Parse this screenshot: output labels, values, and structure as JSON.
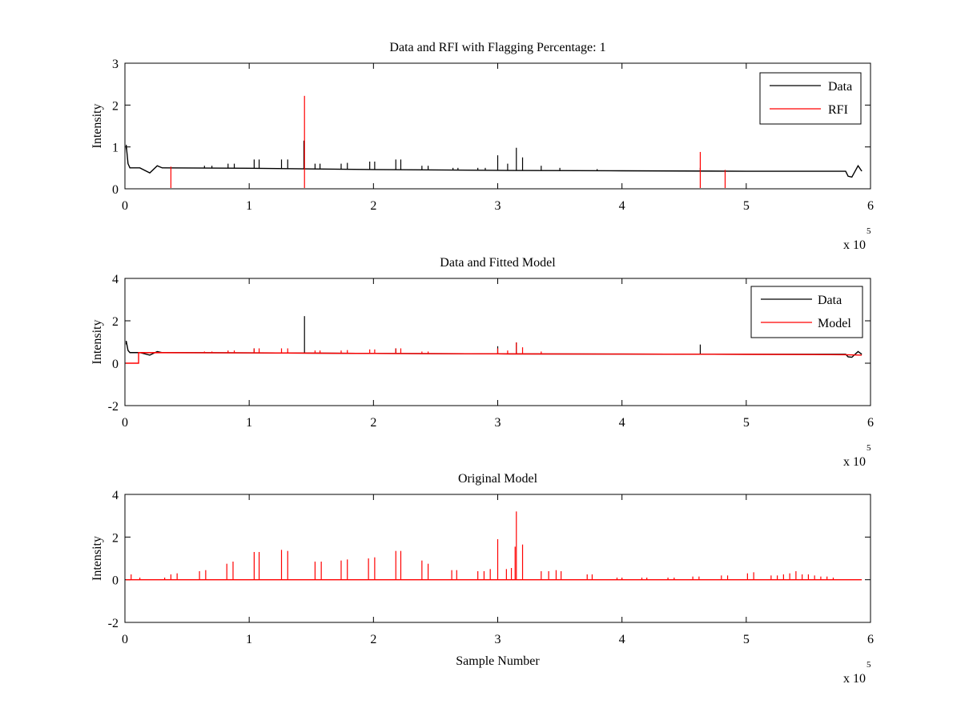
{
  "chart_data": [
    {
      "type": "line",
      "title": "Data and RFI with Flagging Percentage: 1",
      "xlabel": "",
      "ylabel": "Intensity",
      "xlim": [
        0,
        6
      ],
      "ylim": [
        0,
        3
      ],
      "xticks": [
        "0",
        "1",
        "2",
        "3",
        "4",
        "5",
        "6"
      ],
      "yticks": [
        "0",
        "1",
        "2",
        "3"
      ],
      "x_multiplier": {
        "base": "x 10",
        "exponent": "5"
      },
      "legend": {
        "position": "top-right",
        "entries": [
          {
            "label": "Data",
            "color": "#000000"
          },
          {
            "label": "RFI",
            "color": "#ff0000"
          }
        ]
      },
      "series": [
        {
          "name": "Data",
          "color": "#000000",
          "baseline": [
            [
              0,
              0.9
            ],
            [
              0.01,
              1.05
            ],
            [
              0.025,
              0.6
            ],
            [
              0.04,
              0.5
            ],
            [
              0.12,
              0.5
            ],
            [
              0.2,
              0.38
            ],
            [
              0.26,
              0.55
            ],
            [
              0.3,
              0.5
            ],
            [
              1.0,
              0.49
            ],
            [
              2.0,
              0.46
            ],
            [
              3.0,
              0.44
            ],
            [
              4.0,
              0.43
            ],
            [
              5.0,
              0.42
            ],
            [
              5.8,
              0.42
            ],
            [
              5.82,
              0.3
            ],
            [
              5.85,
              0.28
            ],
            [
              5.9,
              0.55
            ],
            [
              5.93,
              0.42
            ]
          ],
          "spikes": [
            [
              0.64,
              0.55
            ],
            [
              0.7,
              0.55
            ],
            [
              0.83,
              0.6
            ],
            [
              0.88,
              0.6
            ],
            [
              1.04,
              0.7
            ],
            [
              1.08,
              0.7
            ],
            [
              1.26,
              0.7
            ],
            [
              1.31,
              0.7
            ],
            [
              1.44,
              1.15
            ],
            [
              1.53,
              0.6
            ],
            [
              1.57,
              0.6
            ],
            [
              1.74,
              0.6
            ],
            [
              1.79,
              0.62
            ],
            [
              1.97,
              0.65
            ],
            [
              2.01,
              0.65
            ],
            [
              2.18,
              0.7
            ],
            [
              2.22,
              0.7
            ],
            [
              2.39,
              0.55
            ],
            [
              2.44,
              0.55
            ],
            [
              2.64,
              0.5
            ],
            [
              2.68,
              0.5
            ],
            [
              2.84,
              0.5
            ],
            [
              2.9,
              0.5
            ],
            [
              3.0,
              0.8
            ],
            [
              3.08,
              0.6
            ],
            [
              3.15,
              0.98
            ],
            [
              3.2,
              0.75
            ],
            [
              3.35,
              0.55
            ],
            [
              3.5,
              0.5
            ],
            [
              3.8,
              0.47
            ],
            [
              4.63,
              0.5
            ],
            [
              4.83,
              0.45
            ]
          ]
        },
        {
          "name": "RFI",
          "color": "#ff0000",
          "spikes": [
            [
              1.445,
              2.22
            ],
            [
              4.63,
              0.88
            ],
            [
              4.83,
              0.45
            ],
            [
              0.37,
              0.53
            ]
          ]
        }
      ]
    },
    {
      "type": "line",
      "title": "Data and Fitted Model",
      "xlabel": "",
      "ylabel": "Intensity",
      "xlim": [
        0,
        6
      ],
      "ylim": [
        -2,
        4
      ],
      "xticks": [
        "0",
        "1",
        "2",
        "3",
        "4",
        "5",
        "6"
      ],
      "yticks": [
        "-2",
        "0",
        "2",
        "4"
      ],
      "x_multiplier": {
        "base": "x 10",
        "exponent": "5"
      },
      "legend": {
        "position": "top-right",
        "entries": [
          {
            "label": "Data",
            "color": "#000000"
          },
          {
            "label": "Model",
            "color": "#ff0000"
          }
        ]
      },
      "series": [
        {
          "name": "Data",
          "color": "#000000",
          "baseline": [
            [
              0,
              0.8
            ],
            [
              0.01,
              1.05
            ],
            [
              0.025,
              0.6
            ],
            [
              0.04,
              0.5
            ],
            [
              0.12,
              0.5
            ],
            [
              0.2,
              0.38
            ],
            [
              0.26,
              0.55
            ],
            [
              0.3,
              0.5
            ],
            [
              1.0,
              0.49
            ],
            [
              2.0,
              0.46
            ],
            [
              3.0,
              0.44
            ],
            [
              4.0,
              0.43
            ],
            [
              5.0,
              0.42
            ],
            [
              5.8,
              0.42
            ],
            [
              5.82,
              0.3
            ],
            [
              5.85,
              0.28
            ],
            [
              5.9,
              0.55
            ],
            [
              5.93,
              0.42
            ]
          ],
          "spikes": [
            [
              1.445,
              2.22
            ],
            [
              4.63,
              0.88
            ],
            [
              3.0,
              0.8
            ],
            [
              3.15,
              0.98
            ],
            [
              2.18,
              0.7
            ],
            [
              1.04,
              0.7
            ]
          ]
        },
        {
          "name": "Model",
          "color": "#ff0000",
          "baseline": [
            [
              0,
              0.0
            ],
            [
              0.11,
              0.0
            ],
            [
              0.11,
              0.5
            ],
            [
              1.0,
              0.49
            ],
            [
              2.0,
              0.46
            ],
            [
              3.0,
              0.44
            ],
            [
              4.0,
              0.43
            ],
            [
              5.0,
              0.42
            ],
            [
              5.8,
              0.4
            ],
            [
              5.93,
              0.38
            ]
          ],
          "spikes": [
            [
              0.64,
              0.55
            ],
            [
              0.7,
              0.55
            ],
            [
              0.83,
              0.6
            ],
            [
              0.88,
              0.6
            ],
            [
              1.04,
              0.7
            ],
            [
              1.08,
              0.7
            ],
            [
              1.26,
              0.7
            ],
            [
              1.31,
              0.7
            ],
            [
              1.53,
              0.6
            ],
            [
              1.57,
              0.6
            ],
            [
              1.74,
              0.6
            ],
            [
              1.79,
              0.62
            ],
            [
              1.97,
              0.65
            ],
            [
              2.01,
              0.65
            ],
            [
              2.18,
              0.7
            ],
            [
              2.22,
              0.7
            ],
            [
              2.39,
              0.55
            ],
            [
              2.44,
              0.55
            ],
            [
              3.0,
              0.7
            ],
            [
              3.08,
              0.6
            ],
            [
              3.15,
              0.98
            ],
            [
              3.2,
              0.75
            ],
            [
              3.35,
              0.55
            ]
          ]
        }
      ]
    },
    {
      "type": "line",
      "title": "Original Model",
      "xlabel": "Sample Number",
      "ylabel": "Intensity",
      "xlim": [
        0,
        6
      ],
      "ylim": [
        -2,
        4
      ],
      "xticks": [
        "0",
        "1",
        "2",
        "3",
        "4",
        "5",
        "6"
      ],
      "yticks": [
        "-2",
        "0",
        "2",
        "4"
      ],
      "x_multiplier": {
        "base": "x 10",
        "exponent": "5"
      },
      "series": [
        {
          "name": "",
          "color": "#ff0000",
          "baseline": [
            [
              0,
              0.0
            ],
            [
              5.93,
              0.0
            ]
          ],
          "spikes": [
            [
              0.05,
              0.25
            ],
            [
              0.12,
              0.1
            ],
            [
              0.32,
              0.1
            ],
            [
              0.37,
              0.25
            ],
            [
              0.42,
              0.3
            ],
            [
              0.6,
              0.4
            ],
            [
              0.65,
              0.45
            ],
            [
              0.82,
              0.75
            ],
            [
              0.87,
              0.85
            ],
            [
              1.04,
              1.3
            ],
            [
              1.08,
              1.3
            ],
            [
              1.26,
              1.4
            ],
            [
              1.31,
              1.35
            ],
            [
              1.53,
              0.85
            ],
            [
              1.58,
              0.85
            ],
            [
              1.74,
              0.9
            ],
            [
              1.79,
              0.95
            ],
            [
              1.96,
              1.0
            ],
            [
              2.01,
              1.05
            ],
            [
              2.18,
              1.35
            ],
            [
              2.22,
              1.35
            ],
            [
              2.39,
              0.9
            ],
            [
              2.44,
              0.75
            ],
            [
              2.63,
              0.45
            ],
            [
              2.67,
              0.45
            ],
            [
              2.84,
              0.4
            ],
            [
              2.89,
              0.4
            ],
            [
              2.94,
              0.5
            ],
            [
              3.0,
              1.9
            ],
            [
              3.07,
              0.5
            ],
            [
              3.11,
              0.55
            ],
            [
              3.14,
              1.55
            ],
            [
              3.15,
              3.2
            ],
            [
              3.2,
              1.65
            ],
            [
              3.35,
              0.4
            ],
            [
              3.41,
              0.4
            ],
            [
              3.47,
              0.45
            ],
            [
              3.51,
              0.4
            ],
            [
              3.72,
              0.25
            ],
            [
              3.76,
              0.25
            ],
            [
              3.96,
              0.1
            ],
            [
              4.0,
              0.1
            ],
            [
              4.16,
              0.1
            ],
            [
              4.2,
              0.1
            ],
            [
              4.37,
              0.1
            ],
            [
              4.42,
              0.1
            ],
            [
              4.57,
              0.15
            ],
            [
              4.62,
              0.15
            ],
            [
              4.8,
              0.2
            ],
            [
              4.85,
              0.2
            ],
            [
              5.01,
              0.3
            ],
            [
              5.06,
              0.35
            ],
            [
              5.2,
              0.2
            ],
            [
              5.25,
              0.2
            ],
            [
              5.3,
              0.25
            ],
            [
              5.35,
              0.3
            ],
            [
              5.4,
              0.4
            ],
            [
              5.45,
              0.25
            ],
            [
              5.5,
              0.25
            ],
            [
              5.55,
              0.2
            ],
            [
              5.6,
              0.15
            ],
            [
              5.65,
              0.15
            ],
            [
              5.7,
              0.1
            ]
          ]
        }
      ]
    }
  ]
}
